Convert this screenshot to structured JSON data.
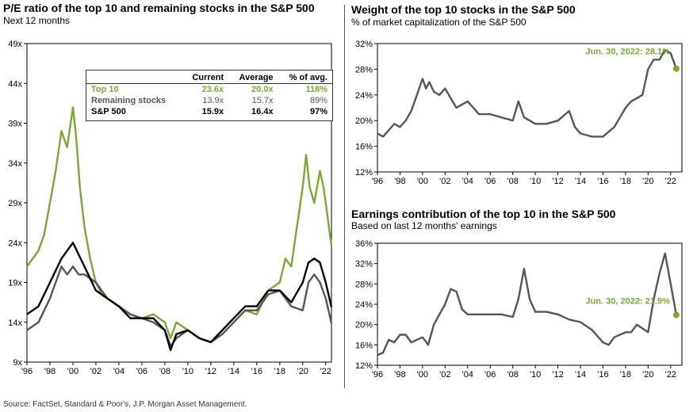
{
  "colors": {
    "top10": "#7aa833",
    "remaining": "#555555",
    "sp500": "#000000",
    "axis": "#000000"
  },
  "left": {
    "title": "P/E ratio of the top 10 and remaining stocks in the S&P 500",
    "subtitle": "Next 12 months",
    "table": {
      "headers": [
        "",
        "Current",
        "Average",
        "% of avg."
      ],
      "rows": [
        {
          "name": "Top 10",
          "current": "23.6x",
          "average": "20.0x",
          "pct": "118%",
          "color": "#7aa833"
        },
        {
          "name": "Remaining stocks",
          "current": "13.9x",
          "average": "15.7x",
          "pct": "89%",
          "color": "#555555"
        },
        {
          "name": "S&P 500",
          "current": "15.9x",
          "average": "16.4x",
          "pct": "97%",
          "color": "#000000"
        }
      ]
    }
  },
  "top_right": {
    "title": "Weight of the top 10 stocks in the S&P 500",
    "subtitle": "% of market capitalization of the S&P 500",
    "annotation": "Jun. 30, 2022: 28.1%"
  },
  "bottom_right": {
    "title": "Earnings contribution of the top 10 in the S&P 500",
    "subtitle": "Based on last 12 months' earnings",
    "annotation": "Jun. 30, 2022: 21.9%"
  },
  "source": "Source: FactSet, Standard & Poor's, J.P. Morgan Asset Management.",
  "chart_data": [
    {
      "type": "line",
      "title": "P/E ratio of the top 10 and remaining stocks in the S&P 500",
      "subtitle": "Next 12 months",
      "xlim": [
        1996,
        2022.5
      ],
      "ylim": [
        9,
        49
      ],
      "x_ticks": [
        "'96",
        "'98",
        "'00",
        "'02",
        "'04",
        "'06",
        "'08",
        "'10",
        "'12",
        "'14",
        "'16",
        "'18",
        "'20",
        "'22"
      ],
      "y_ticks": [
        "9x",
        "14x",
        "19x",
        "24x",
        "29x",
        "34x",
        "39x",
        "44x",
        "49x"
      ],
      "y_tick_values": [
        9,
        14,
        19,
        24,
        29,
        34,
        39,
        44,
        49
      ],
      "series": [
        {
          "name": "Top 10",
          "color": "#7aa833",
          "x": [
            1996,
            1996.5,
            1997,
            1997.5,
            1998,
            1998.5,
            1999,
            1999.5,
            2000,
            2000.3,
            2000.6,
            2001,
            2001.5,
            2002,
            2002.5,
            2003,
            2003.5,
            2004,
            2005,
            2006,
            2007,
            2008,
            2008.5,
            2009,
            2010,
            2011,
            2012,
            2013,
            2014,
            2015,
            2016,
            2017,
            2018,
            2018.5,
            2019,
            2019.5,
            2020,
            2020.3,
            2020.6,
            2021,
            2021.5,
            2021.8,
            2022,
            2022.5
          ],
          "y": [
            21,
            22,
            23,
            25,
            29,
            33,
            38,
            36,
            41,
            37,
            31,
            26,
            22,
            19,
            17.5,
            17,
            16.5,
            16,
            15,
            14.5,
            15,
            14,
            12,
            14,
            13,
            12,
            11.5,
            12.5,
            14,
            15.5,
            15,
            18,
            19,
            22,
            21,
            26,
            31,
            35,
            31,
            29,
            33,
            31,
            29,
            23.6
          ]
        },
        {
          "name": "Remaining stocks",
          "color": "#555555",
          "x": [
            1996,
            1997,
            1998,
            1998.5,
            1999,
            1999.5,
            2000,
            2000.5,
            2001,
            2002,
            2003,
            2004,
            2005,
            2006,
            2007,
            2008,
            2008.5,
            2009,
            2010,
            2011,
            2012,
            2013,
            2014,
            2015,
            2016,
            2017,
            2018,
            2018.5,
            2019,
            2020,
            2020.5,
            2021,
            2021.5,
            2022,
            2022.5
          ],
          "y": [
            13,
            14,
            17,
            19,
            21,
            20,
            21,
            20,
            20,
            19,
            17,
            16,
            15,
            14.5,
            14,
            13,
            11,
            12,
            13,
            12,
            11.5,
            12.5,
            14,
            15.5,
            15.5,
            17.5,
            18,
            17,
            16,
            15.5,
            19,
            20,
            19,
            17,
            13.9
          ]
        },
        {
          "name": "S&P 500",
          "color": "#000000",
          "x": [
            1996,
            1997,
            1998,
            1999,
            2000,
            2001,
            2002,
            2003,
            2004,
            2005,
            2006,
            2007,
            2008,
            2008.5,
            2009,
            2010,
            2011,
            2012,
            2013,
            2014,
            2015,
            2016,
            2017,
            2018,
            2019,
            2020,
            2020.5,
            2021,
            2021.5,
            2022,
            2022.5
          ],
          "y": [
            15,
            16,
            19,
            22,
            24,
            21,
            18,
            17,
            16,
            14.5,
            14.5,
            14.5,
            13,
            10.5,
            12.5,
            13,
            12,
            11.5,
            13,
            14.5,
            16,
            16,
            18,
            18,
            16.5,
            19,
            21.5,
            22,
            21.5,
            19,
            15.9
          ]
        }
      ]
    },
    {
      "type": "line",
      "title": "Weight of the top 10 stocks in the S&P 500",
      "subtitle": "% of market capitalization of the S&P 500",
      "xlim": [
        1996,
        2023
      ],
      "ylim": [
        12,
        32
      ],
      "x_ticks": [
        "'96",
        "'98",
        "'00",
        "'02",
        "'04",
        "'06",
        "'08",
        "'10",
        "'12",
        "'14",
        "'16",
        "'18",
        "'20",
        "'22"
      ],
      "y_ticks": [
        "12%",
        "16%",
        "20%",
        "24%",
        "28%",
        "32%"
      ],
      "y_tick_values": [
        12,
        16,
        20,
        24,
        28,
        32
      ],
      "annotation": "Jun. 30, 2022: 28.1%",
      "series": [
        {
          "name": "Top 10 weight",
          "color": "#555555",
          "x": [
            1996,
            1996.5,
            1997,
            1997.5,
            1998,
            1998.5,
            1999,
            1999.5,
            2000,
            2000.3,
            2000.6,
            2001,
            2001.5,
            2002,
            2002.5,
            2003,
            2004,
            2005,
            2006,
            2007,
            2008,
            2008.5,
            2009,
            2009.5,
            2010,
            2011,
            2012,
            2013,
            2013.5,
            2014,
            2015,
            2016,
            2017,
            2018,
            2018.5,
            2019,
            2019.5,
            2020,
            2020.5,
            2021,
            2021.5,
            2022,
            2022.5
          ],
          "y": [
            18,
            17.5,
            18.5,
            19.5,
            19,
            20,
            21.5,
            24,
            26.5,
            25,
            26,
            24.5,
            24,
            25,
            23.5,
            22,
            23,
            21,
            21,
            20.5,
            20,
            23,
            20.5,
            20,
            19.5,
            19.5,
            20,
            21.5,
            19,
            18,
            17.5,
            17.5,
            19,
            22,
            23,
            23.5,
            24,
            28,
            29.5,
            29.5,
            31,
            30.5,
            28.1
          ]
        }
      ]
    },
    {
      "type": "line",
      "title": "Earnings contribution of the top 10 in the S&P 500",
      "subtitle": "Based on last 12 months' earnings",
      "xlim": [
        1996,
        2023
      ],
      "ylim": [
        12,
        36
      ],
      "x_ticks": [
        "'96",
        "'98",
        "'00",
        "'02",
        "'04",
        "'06",
        "'08",
        "'10",
        "'12",
        "'14",
        "'16",
        "'18",
        "'20",
        "'22"
      ],
      "y_ticks": [
        "12%",
        "16%",
        "20%",
        "24%",
        "28%",
        "32%",
        "36%"
      ],
      "y_tick_values": [
        12,
        16,
        20,
        24,
        28,
        32,
        36
      ],
      "annotation": "Jun. 30, 2022: 21.9%",
      "series": [
        {
          "name": "Top 10 earnings contribution",
          "color": "#555555",
          "x": [
            1996,
            1996.5,
            1997,
            1997.5,
            1998,
            1998.5,
            1999,
            1999.5,
            2000,
            2000.5,
            2001,
            2001.5,
            2002,
            2002.5,
            2003,
            2003.5,
            2004,
            2005,
            2006,
            2007,
            2008,
            2008.5,
            2009,
            2009.5,
            2010,
            2011,
            2012,
            2013,
            2014,
            2015,
            2016,
            2016.5,
            2017,
            2018,
            2018.5,
            2019,
            2020,
            2020.5,
            2021,
            2021.5,
            2022,
            2022.5
          ],
          "y": [
            14,
            14.5,
            17,
            16.5,
            18,
            18,
            16.5,
            17,
            17.5,
            16,
            20,
            22,
            24,
            27,
            26.5,
            23,
            22,
            22,
            22,
            22,
            21.5,
            25,
            31,
            25,
            22.5,
            22.5,
            22,
            21,
            20.5,
            19,
            16.5,
            16,
            17.5,
            18.5,
            18.5,
            20,
            18.5,
            25,
            30,
            34,
            28,
            21.9
          ]
        }
      ]
    }
  ]
}
